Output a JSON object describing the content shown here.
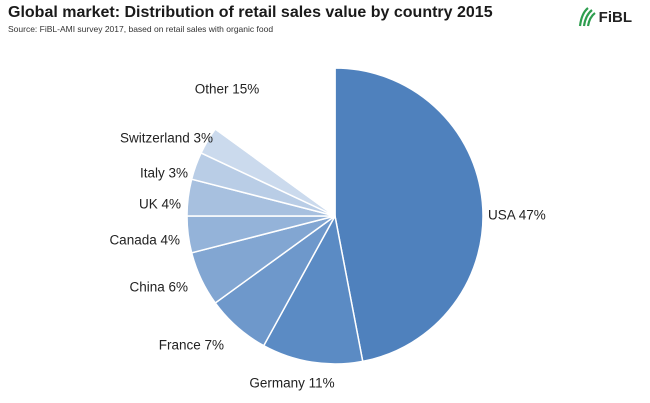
{
  "chart_data": {
    "type": "pie",
    "title": "Global market: Distribution of retail sales value by country 2015",
    "subtitle": "Source: FiBL-AMI survey 2017, based on retail sales with organic food",
    "slices": [
      {
        "label": "USA 47%",
        "name": "USA",
        "value": 47,
        "color": "#4f81bd"
      },
      {
        "label": "Germany 11%",
        "name": "Germany",
        "value": 11,
        "color": "#5b8bc4"
      },
      {
        "label": "France 7%",
        "name": "France",
        "value": 7,
        "color": "#6e98cb"
      },
      {
        "label": "China 6%",
        "name": "China",
        "value": 6,
        "color": "#82a6d2"
      },
      {
        "label": "Canada 4%",
        "name": "Canada",
        "value": 4,
        "color": "#94b3d9"
      },
      {
        "label": "UK 4%",
        "name": "UK",
        "value": 4,
        "color": "#a7c0df"
      },
      {
        "label": "Italy 3%",
        "name": "Italy",
        "value": 3,
        "color": "#b9cde6"
      },
      {
        "label": "Switzerland 3%",
        "name": "Switzerland",
        "value": 3,
        "color": "#cbdaed"
      },
      {
        "label": "Other 15%",
        "name": "Other",
        "value": 15,
        "color": "#ffffff"
      }
    ]
  },
  "logo": {
    "text": "FiBL",
    "color": "#2e9e4f"
  }
}
